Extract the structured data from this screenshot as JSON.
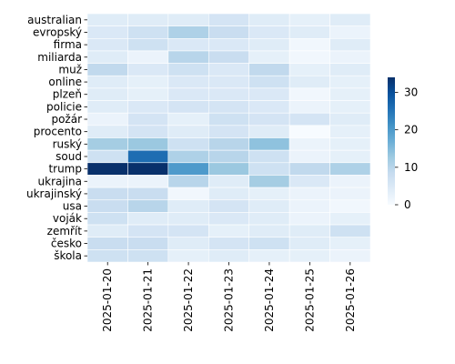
{
  "chart_data": {
    "type": "heatmap",
    "title": "",
    "xlabel": "",
    "ylabel": "",
    "x_categories": [
      "2025-01-20",
      "2025-01-21",
      "2025-01-22",
      "2025-01-23",
      "2025-01-24",
      "2025-01-25",
      "2025-01-26"
    ],
    "y_categories": [
      "australian",
      "evropský",
      "firma",
      "miliarda",
      "muž",
      "online",
      "plzeň",
      "policie",
      "požár",
      "procento",
      "ruský",
      "soud",
      "trump",
      "ukrajina",
      "ukrajinský",
      "usa",
      "voják",
      "zemřít",
      "česko",
      "škola"
    ],
    "values": [
      [
        4,
        4,
        4,
        6,
        4,
        3,
        4
      ],
      [
        5,
        7,
        11,
        8,
        5,
        4,
        2
      ],
      [
        5,
        7,
        5,
        5,
        4,
        1,
        4
      ],
      [
        4,
        2,
        10,
        8,
        3,
        1,
        2
      ],
      [
        9,
        5,
        7,
        5,
        9,
        3,
        4
      ],
      [
        4,
        3,
        5,
        5,
        7,
        4,
        3
      ],
      [
        4,
        3,
        5,
        5,
        5,
        1,
        3
      ],
      [
        4,
        5,
        6,
        6,
        5,
        2,
        3
      ],
      [
        2,
        6,
        3,
        7,
        6,
        6,
        4
      ],
      [
        4,
        6,
        4,
        6,
        4,
        0,
        3
      ],
      [
        12,
        13,
        7,
        10,
        14,
        2,
        3
      ],
      [
        7,
        26,
        11,
        10,
        7,
        2,
        3
      ],
      [
        34,
        34,
        20,
        13,
        7,
        9,
        11
      ],
      [
        2,
        2,
        10,
        4,
        12,
        5,
        2
      ],
      [
        8,
        8,
        1,
        4,
        3,
        2,
        2
      ],
      [
        8,
        10,
        4,
        6,
        4,
        2,
        1
      ],
      [
        7,
        4,
        4,
        5,
        4,
        2,
        3
      ],
      [
        4,
        6,
        6,
        3,
        4,
        4,
        7
      ],
      [
        8,
        8,
        4,
        6,
        7,
        4,
        3
      ],
      [
        7,
        7,
        3,
        4,
        3,
        3,
        2
      ]
    ],
    "colorbar": {
      "vmin": 0,
      "vmax": 34,
      "ticks": [
        0,
        10,
        20,
        30
      ],
      "cmap": "Blues"
    },
    "grid": false,
    "cell_border_color": "#ffffff"
  }
}
